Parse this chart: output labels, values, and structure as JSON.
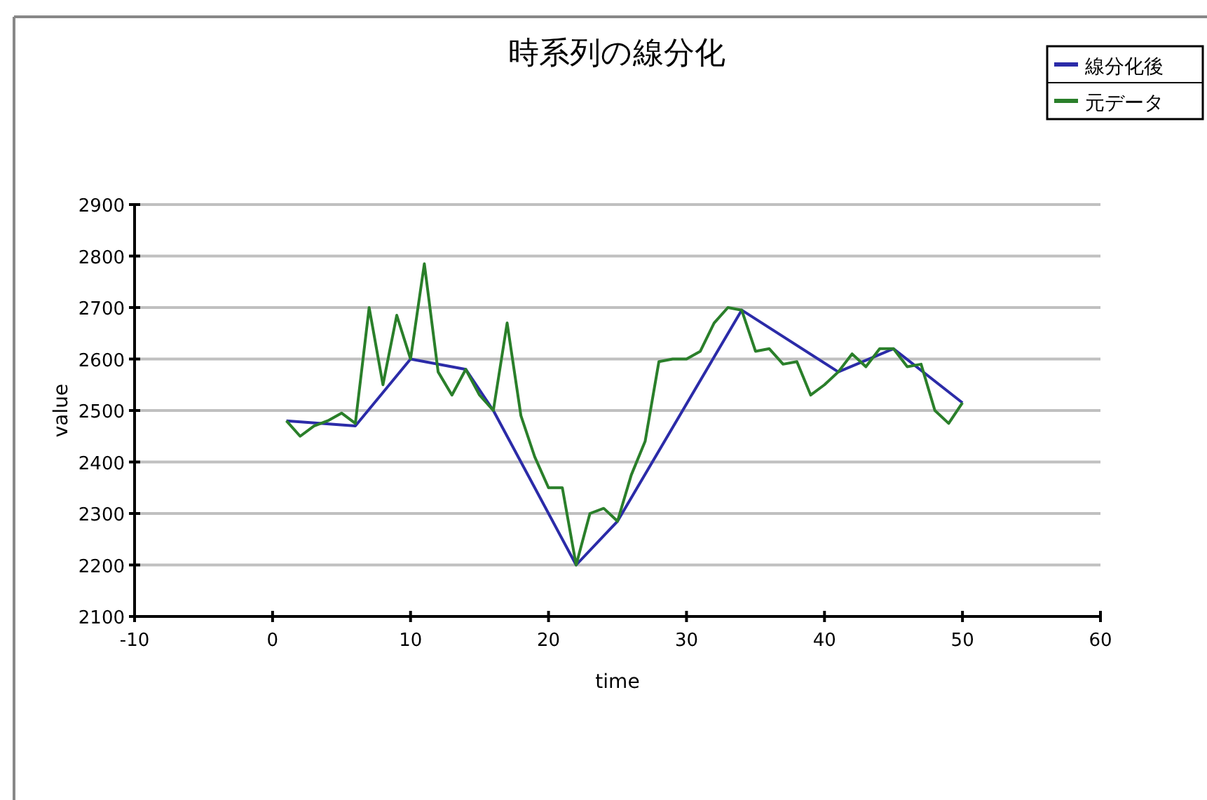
{
  "chart_data": {
    "type": "line",
    "title": "時系列の線分化",
    "xlabel": "time",
    "ylabel": "value",
    "xlim": [
      -10,
      60
    ],
    "xticks": [
      -10,
      0,
      10,
      20,
      30,
      40,
      50,
      60
    ],
    "ylim": [
      2100,
      2900
    ],
    "yticks": [
      2100,
      2200,
      2300,
      2400,
      2500,
      2600,
      2700,
      2800,
      2900
    ],
    "grid": "y",
    "legend": "top right",
    "marker": "none",
    "line_style": "solid",
    "series": [
      {
        "name": "線分化後",
        "color": "#2b2ba8",
        "x": [
          1,
          6,
          10,
          14,
          16,
          22,
          25,
          34,
          41,
          45,
          50
        ],
        "values": [
          2480,
          2470,
          2600,
          2580,
          2500,
          2200,
          2285,
          2695,
          2575,
          2620,
          2515
        ]
      },
      {
        "name": "元データ",
        "color": "#2a7f2a",
        "x": [
          1,
          2,
          3,
          4,
          5,
          6,
          7,
          8,
          9,
          10,
          11,
          12,
          13,
          14,
          15,
          16,
          17,
          18,
          19,
          20,
          21,
          22,
          23,
          24,
          25,
          26,
          27,
          28,
          29,
          30,
          31,
          32,
          33,
          34,
          35,
          36,
          37,
          38,
          39,
          40,
          41,
          42,
          43,
          44,
          45,
          46,
          47,
          48,
          49,
          50
        ],
        "values": [
          2480,
          2450,
          2470,
          2480,
          2495,
          2475,
          2700,
          2550,
          2685,
          2600,
          2785,
          2575,
          2530,
          2580,
          2530,
          2500,
          2670,
          2490,
          2410,
          2350,
          2350,
          2200,
          2300,
          2310,
          2285,
          2375,
          2440,
          2595,
          2600,
          2600,
          2615,
          2670,
          2700,
          2695,
          2615,
          2620,
          2590,
          2595,
          2530,
          2550,
          2575,
          2610,
          2585,
          2620,
          2620,
          2585,
          2590,
          2500,
          2475,
          2515
        ]
      }
    ]
  }
}
